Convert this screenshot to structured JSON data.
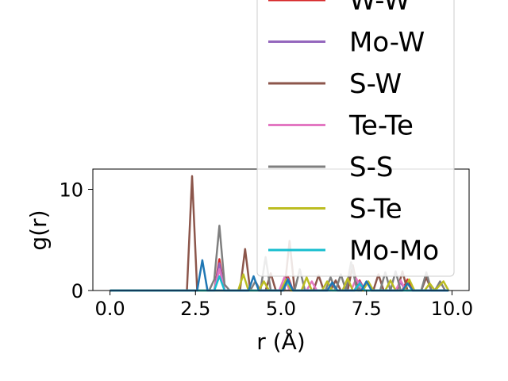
{
  "chart_data": {
    "type": "line",
    "title": "",
    "xlabel": "r (Å)",
    "ylabel": "g(r)",
    "xlim": [
      -0.5,
      10.5
    ],
    "ylim": [
      0,
      12
    ],
    "xticks": [
      0.0,
      2.5,
      5.0,
      7.5,
      10.0
    ],
    "xtick_labels": [
      "0.0",
      "2.5",
      "5.0",
      "7.5",
      "10.0"
    ],
    "yticks": [
      0,
      10
    ],
    "ytick_labels": [
      "0",
      "10"
    ],
    "grid": false,
    "legend_position": "upper right (overflowing above the axes)",
    "series": [
      {
        "name": "W-W",
        "color": "#d62728",
        "x": [
          0,
          3.05,
          3.2,
          3.35,
          5.05,
          5.2,
          5.35,
          7.15,
          7.3,
          7.45,
          8.55,
          8.7,
          8.85,
          9.9
        ],
        "y": [
          0,
          0,
          3.1,
          0,
          0,
          1.4,
          0,
          0,
          1.0,
          0,
          0,
          1.1,
          0,
          0
        ]
      },
      {
        "name": "Mo-W",
        "color": "#9467bd",
        "x": [
          0,
          3.05,
          3.2,
          3.35,
          5.05,
          5.2,
          5.35,
          6.35,
          6.5,
          6.65,
          7.15,
          7.3,
          7.45,
          8.35,
          8.5,
          8.65,
          9.9
        ],
        "y": [
          0,
          0,
          2.7,
          0,
          0,
          1.2,
          0,
          0,
          0.6,
          0,
          0,
          0.9,
          0,
          0,
          0.8,
          0,
          0
        ]
      },
      {
        "name": "S-W",
        "color": "#8c564b",
        "x": [
          0,
          2.25,
          2.4,
          2.55,
          3.8,
          3.95,
          4.1,
          4.55,
          4.7,
          4.85,
          5.1,
          5.25,
          5.4,
          5.95,
          6.1,
          6.25,
          6.45,
          6.6,
          6.75,
          6.95,
          7.1,
          7.25,
          7.7,
          7.85,
          8.0,
          8.4,
          8.55,
          8.7,
          9.1,
          9.25,
          9.4,
          9.9
        ],
        "y": [
          0,
          0,
          11.3,
          0,
          0,
          4.1,
          0,
          0,
          1.7,
          0,
          0,
          4.9,
          0,
          0,
          1.5,
          0,
          0,
          1.0,
          0,
          0,
          2.5,
          0,
          0,
          1.6,
          0,
          0,
          1.9,
          0,
          0,
          1.3,
          0,
          0
        ]
      },
      {
        "name": "Te-Te",
        "color": "#e377c2",
        "x": [
          0,
          3.05,
          3.2,
          3.35,
          4.95,
          5.1,
          5.25,
          5.75,
          5.9,
          6.05,
          7.05,
          7.2,
          7.35,
          8.35,
          8.5,
          8.65,
          9.9
        ],
        "y": [
          0,
          0,
          2.1,
          0,
          0,
          1.3,
          0,
          0,
          0.9,
          0,
          0,
          1.2,
          0,
          0,
          1.0,
          0,
          0
        ]
      },
      {
        "name": "S-S",
        "color": "#7f7f7f",
        "x": [
          0,
          2.9,
          3.05,
          3.2,
          3.35,
          3.5,
          4.1,
          4.25,
          4.4,
          4.55,
          4.7,
          4.85,
          5.4,
          5.55,
          5.7,
          6.3,
          6.45,
          6.6,
          6.75,
          6.9,
          7.05,
          7.2,
          7.35,
          7.9,
          8.05,
          8.2,
          8.35,
          8.5,
          8.65,
          9.1,
          9.25,
          9.4,
          9.5,
          9.65,
          9.8,
          9.9
        ],
        "y": [
          0,
          0,
          1.1,
          6.4,
          0.6,
          0,
          0,
          0.9,
          0,
          3.3,
          0,
          0,
          0,
          2.1,
          0,
          0,
          1.3,
          0,
          1.6,
          0,
          2.8,
          0.4,
          0,
          0,
          1.8,
          0,
          1.9,
          0,
          0,
          0,
          1.8,
          0,
          0,
          0.9,
          0,
          0
        ]
      },
      {
        "name": "S-Te",
        "color": "#bcbd22",
        "x": [
          0,
          3.75,
          3.9,
          4.05,
          4.35,
          4.5,
          4.65,
          5.0,
          5.15,
          5.3,
          5.6,
          5.75,
          5.9,
          6.2,
          6.35,
          6.5,
          6.8,
          6.95,
          7.1,
          7.4,
          7.55,
          7.7,
          8.05,
          8.2,
          8.35,
          8.6,
          8.75,
          8.9,
          9.2,
          9.35,
          9.5,
          9.75,
          9.9
        ],
        "y": [
          0,
          0,
          1.6,
          0,
          0,
          0.9,
          0,
          0,
          1.1,
          0,
          0,
          1.3,
          0,
          0,
          0.9,
          0,
          0,
          1.2,
          0,
          0,
          0.9,
          0,
          0,
          1.0,
          0,
          0,
          1.1,
          0,
          0,
          0.7,
          0,
          0.9,
          0
        ]
      },
      {
        "name": "Mo-Mo",
        "color": "#17becf",
        "x": [
          0,
          3.05,
          3.2,
          3.35,
          5.05,
          5.2,
          5.35,
          7.15,
          7.3,
          7.45,
          9.9
        ],
        "y": [
          0,
          0,
          1.4,
          0,
          0,
          0.9,
          0,
          0,
          0.7,
          0,
          0
        ]
      },
      {
        "name": "",
        "color": "#1f77b4",
        "x": [
          0,
          2.55,
          2.7,
          2.85,
          4.05,
          4.2,
          4.35,
          5.05,
          5.2,
          5.35,
          6.35,
          6.5,
          6.65,
          7.35,
          7.5,
          7.65,
          8.55,
          8.7,
          8.85,
          9.9
        ],
        "y": [
          0,
          0,
          3.0,
          0,
          0,
          1.4,
          0,
          0,
          1.1,
          0,
          0,
          0.8,
          0,
          0,
          0.9,
          0,
          0,
          0.7,
          0,
          0
        ]
      }
    ]
  }
}
